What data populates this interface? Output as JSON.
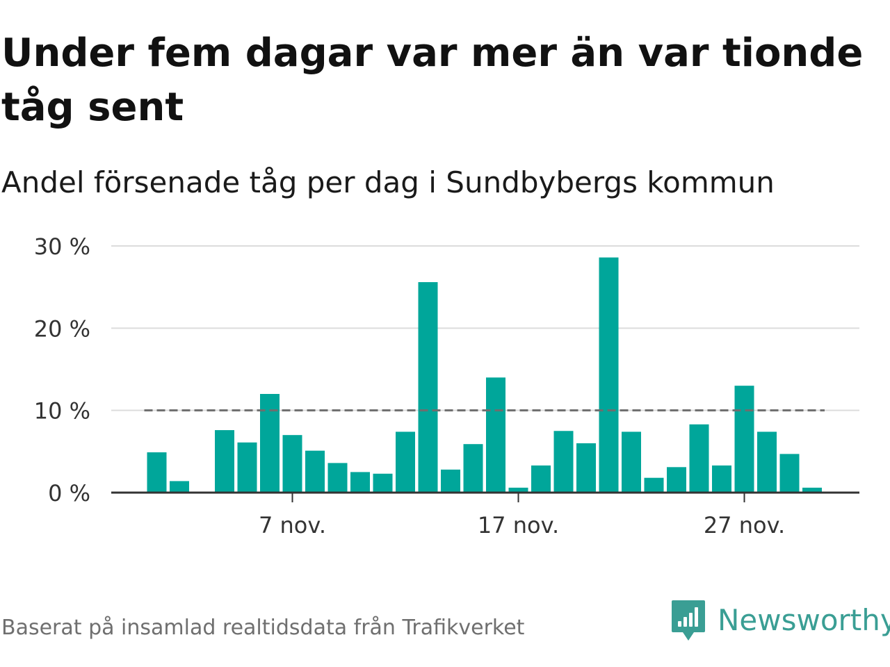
{
  "title": "Under fem dagar var mer än var tionde tåg sent",
  "subtitle": "Andel försenade tåg per dag i Sundbybergs kommun",
  "source": "Baserat på insamlad realtidsdata från Trafikverket",
  "brand": "Newsworthy",
  "colors": {
    "bar": "#00a69a",
    "grid": "#dcdcdc",
    "axis": "#333333",
    "reference_line": "#6e6e6e",
    "brand": "#3a9e94"
  },
  "chart_data": {
    "type": "bar",
    "title": "Under fem dagar var mer än var tionde tåg sent",
    "subtitle": "Andel försenade tåg per dag i Sundbybergs kommun",
    "xlabel": "",
    "ylabel": "",
    "categories": [
      "1 nov.",
      "2 nov.",
      "3 nov.",
      "4 nov.",
      "5 nov.",
      "6 nov.",
      "7 nov.",
      "8 nov.",
      "9 nov.",
      "10 nov.",
      "11 nov.",
      "12 nov.",
      "13 nov.",
      "14 nov.",
      "15 nov.",
      "16 nov.",
      "17 nov.",
      "18 nov.",
      "19 nov.",
      "20 nov.",
      "21 nov.",
      "22 nov.",
      "23 nov.",
      "24 nov.",
      "25 nov.",
      "26 nov.",
      "27 nov.",
      "28 nov.",
      "29 nov.",
      "30 nov."
    ],
    "values": [
      4.9,
      1.4,
      null,
      7.6,
      6.1,
      12.0,
      7.0,
      5.1,
      3.6,
      2.5,
      2.3,
      7.4,
      25.6,
      2.8,
      5.9,
      14.0,
      0.6,
      3.3,
      7.5,
      6.0,
      28.6,
      7.4,
      1.8,
      3.1,
      8.3,
      3.3,
      13.0,
      7.4,
      4.7,
      0.6
    ],
    "ylim": [
      0,
      30
    ],
    "yticks": [
      0,
      10,
      20,
      30
    ],
    "ytick_labels": [
      "0 %",
      "10 %",
      "20 %",
      "30 %"
    ],
    "xticks": [
      {
        "category": "7 nov.",
        "label": "7 nov."
      },
      {
        "category": "17 nov.",
        "label": "17 nov."
      },
      {
        "category": "27 nov.",
        "label": "27 nov."
      }
    ],
    "reference_line": {
      "value": 10,
      "style": "dashed"
    },
    "grid": true,
    "legend": "none"
  }
}
